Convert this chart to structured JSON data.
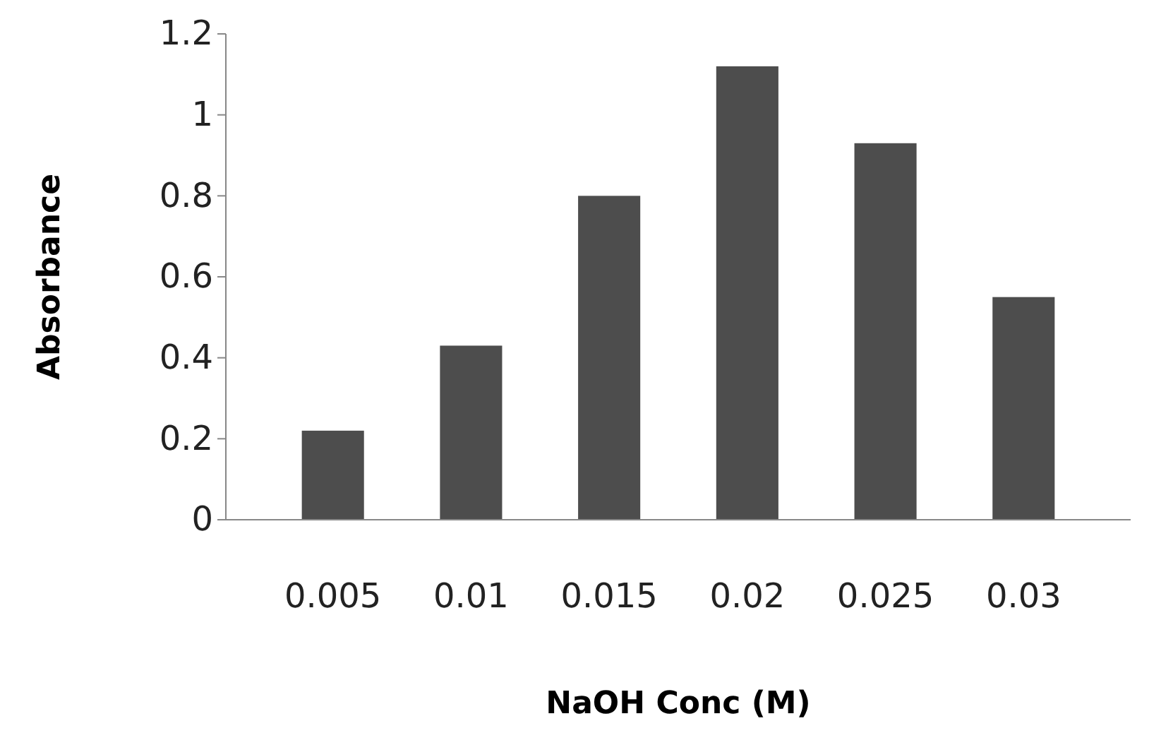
{
  "chart_data": {
    "type": "bar",
    "xlabel": "NaOH Conc (M)",
    "ylabel": "Absorbance",
    "categories": [
      "0.005",
      "0.01",
      "0.015",
      "0.02",
      "0.025",
      "0.03"
    ],
    "values": [
      0.22,
      0.43,
      0.8,
      1.12,
      0.93,
      0.55
    ],
    "color": "#4d4d4d",
    "ylim": [
      0,
      1.2
    ],
    "yticks": [
      0,
      0.2,
      0.4,
      0.6,
      0.8,
      1,
      1.2
    ],
    "grid": false
  }
}
